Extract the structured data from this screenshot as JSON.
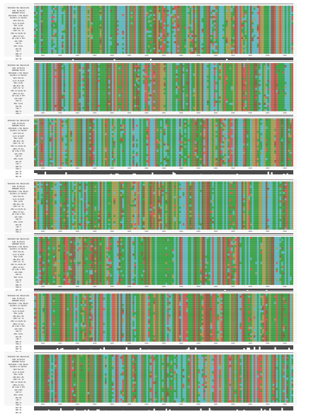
{
  "palette": {
    "green": "#3aa046",
    "red": "#cc5a52",
    "cyan": "#5fb5bd",
    "olive": "#a49a55",
    "brown": "#8b5e42",
    "conservation": "#4a4a4a",
    "background": "#f6f6f6"
  },
  "alignment": {
    "panel_count": 7,
    "sequence_names": [
      "EU316945 Hb1 BW1/D1/B1",
      "CGH1 H1/B1/D1",
      "GBH9868 B1/D1",
      "EU316945.1 Hb1 BW/D1",
      "KG/B211 A1 KW/OLD",
      "VA07 BL1/A1",
      "CA/H 15-B/DF",
      "HB1 C1/B1",
      "AB9 NS1 LHS",
      "CG6F-13/ A1",
      "HB3 A1 KS/B1 RS",
      "AB61 D1 BL1",
      "GM 3/HA 0 FHT",
      "GSK 1994",
      "LGM-S1",
      "HB1 Y1/D1",
      "AB1 KH",
      "C8F-7",
      "AB8 LP",
      "H2R-A",
      "AB4 SB",
      "ABR S2",
      "HB1 H2"
    ]
  }
}
